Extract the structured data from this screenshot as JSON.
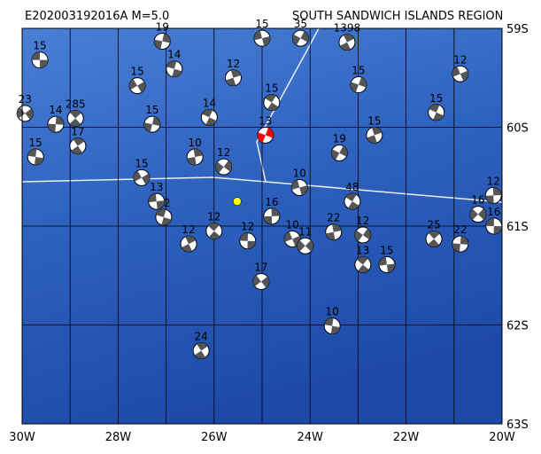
{
  "title_id": "E202003192016A  M=5.0",
  "region": "SOUTH SANDWICH ISLANDS REGION",
  "xlim": [
    -30,
    -20
  ],
  "ylim": [
    -63,
    -59
  ],
  "xticks": [
    {
      "value": -30,
      "label": "30W"
    },
    {
      "value": -28,
      "label": "28W"
    },
    {
      "value": -26,
      "label": "26W"
    },
    {
      "value": -24,
      "label": "24W"
    },
    {
      "value": -22,
      "label": "22W"
    },
    {
      "value": -20,
      "label": "20W"
    }
  ],
  "xminor": [
    -29,
    -27,
    -25,
    -23,
    -21
  ],
  "yticks": [
    {
      "value": -59,
      "label": "59S"
    },
    {
      "value": -60,
      "label": "60S"
    },
    {
      "value": -61,
      "label": "61S"
    },
    {
      "value": -62,
      "label": "62S"
    },
    {
      "value": -63,
      "label": "63S"
    }
  ],
  "epicenter": {
    "lon": -25.52,
    "lat": -60.75,
    "color": "#ffff00"
  },
  "events": [
    {
      "lon": -29.63,
      "lat": -59.32,
      "depth": 15
    },
    {
      "lon": -28.89,
      "lat": -59.91,
      "depth": 285
    },
    {
      "lon": -29.3,
      "lat": -59.97,
      "depth": 14
    },
    {
      "lon": -29.94,
      "lat": -59.86,
      "depth": 23
    },
    {
      "lon": -29.72,
      "lat": -60.3,
      "depth": 15
    },
    {
      "lon": -28.84,
      "lat": -60.19,
      "depth": 17
    },
    {
      "lon": -27.08,
      "lat": -59.13,
      "depth": 19
    },
    {
      "lon": -27.6,
      "lat": -59.58,
      "depth": 15
    },
    {
      "lon": -26.83,
      "lat": -59.41,
      "depth": 14
    },
    {
      "lon": -23.23,
      "lat": -59.14,
      "depth": 1398
    },
    {
      "lon": -22.99,
      "lat": -59.57,
      "depth": 15
    },
    {
      "lon": -20.87,
      "lat": -59.46,
      "depth": 12
    },
    {
      "lon": -21.37,
      "lat": -59.85,
      "depth": 15
    },
    {
      "lon": -22.66,
      "lat": -60.08,
      "depth": 15
    },
    {
      "lon": -23.39,
      "lat": -60.26,
      "depth": 19
    },
    {
      "lon": -24.22,
      "lat": -60.61,
      "depth": 10
    },
    {
      "lon": -23.12,
      "lat": -60.75,
      "depth": 48
    },
    {
      "lon": -23.51,
      "lat": -61.06,
      "depth": 22
    },
    {
      "lon": -22.9,
      "lat": -61.09,
      "depth": 12
    },
    {
      "lon": -22.4,
      "lat": -61.39,
      "depth": 15
    },
    {
      "lon": -22.9,
      "lat": -61.39,
      "depth": 13
    },
    {
      "lon": -20.18,
      "lat": -60.69,
      "depth": 12
    },
    {
      "lon": -20.5,
      "lat": -60.88,
      "depth": 16
    },
    {
      "lon": -20.17,
      "lat": -61.0,
      "depth": 16
    },
    {
      "lon": -21.42,
      "lat": -61.13,
      "depth": 25
    },
    {
      "lon": -20.87,
      "lat": -61.18,
      "depth": 22
    },
    {
      "lon": -25.02,
      "lat": -61.56,
      "depth": 17
    },
    {
      "lon": -23.54,
      "lat": -62.01,
      "depth": 10
    },
    {
      "lon": -26.27,
      "lat": -62.26,
      "depth": 24
    },
    {
      "lon": -27.29,
      "lat": -59.97,
      "depth": 15
    },
    {
      "lon": -27.51,
      "lat": -60.51,
      "depth": 15
    },
    {
      "lon": -27.05,
      "lat": -60.91,
      "depth": 12
    },
    {
      "lon": -26.53,
      "lat": -61.18,
      "depth": 12
    },
    {
      "lon": -24.93,
      "lat": -60.08,
      "depth": 13,
      "color": "#ff0000"
    },
    {
      "lon": -24.37,
      "lat": -61.13,
      "depth": 10
    },
    {
      "lon": -26.1,
      "lat": -59.9,
      "depth": 14
    },
    {
      "lon": -25.6,
      "lat": -59.5,
      "depth": 12
    },
    {
      "lon": -24.2,
      "lat": -59.1,
      "depth": 35
    },
    {
      "lon": -25.0,
      "lat": -59.1,
      "depth": 15
    },
    {
      "lon": -24.8,
      "lat": -59.75,
      "depth": 15
    },
    {
      "lon": -26.4,
      "lat": -60.3,
      "depth": 10
    },
    {
      "lon": -25.8,
      "lat": -60.4,
      "depth": 12
    },
    {
      "lon": -27.2,
      "lat": -60.75,
      "depth": 13
    },
    {
      "lon": -26.0,
      "lat": -61.05,
      "depth": 12
    },
    {
      "lon": -24.8,
      "lat": -60.9,
      "depth": 16
    },
    {
      "lon": -24.1,
      "lat": -61.2,
      "depth": 11
    },
    {
      "lon": -25.3,
      "lat": -61.15,
      "depth": 12
    }
  ]
}
